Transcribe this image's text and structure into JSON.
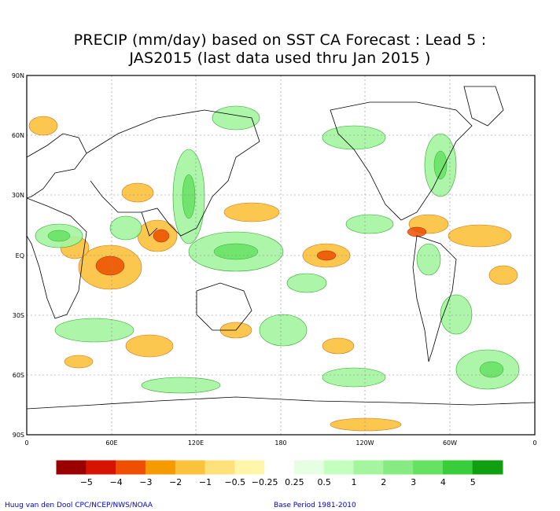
{
  "title_line1": "PRECIP (mm/day) based on SST CA Forecast : Lead 5 :",
  "title_line2": "JAS2015 (last data used thru Jan 2015 )",
  "y_axis_labels": [
    "90N",
    "60N",
    "30N",
    "EQ",
    "30S",
    "60S",
    "90S"
  ],
  "x_axis_labels": [
    "0",
    "60E",
    "120E",
    "180",
    "120W",
    "60W",
    "0"
  ],
  "colorbar": {
    "colors": [
      "#9b0000",
      "#d71400",
      "#ee4f00",
      "#f59a00",
      "#fbc23c",
      "#fee17a",
      "#fff6a9",
      "#ffffff",
      "#e6ffe2",
      "#c3ffbd",
      "#a5f59f",
      "#86ec82",
      "#66e263",
      "#38cd3a",
      "#109f10"
    ],
    "labels": [
      "−5",
      "−4",
      "−3",
      "−2",
      "−1",
      "−0.5",
      "−0.25",
      "0.25",
      "0.5",
      "1",
      "2",
      "3",
      "4",
      "5"
    ]
  },
  "credit_left": "Huug van den Dool  CPC/NCEP/NWS/NOAA",
  "credit_right": "Base Period 1981-2010"
}
